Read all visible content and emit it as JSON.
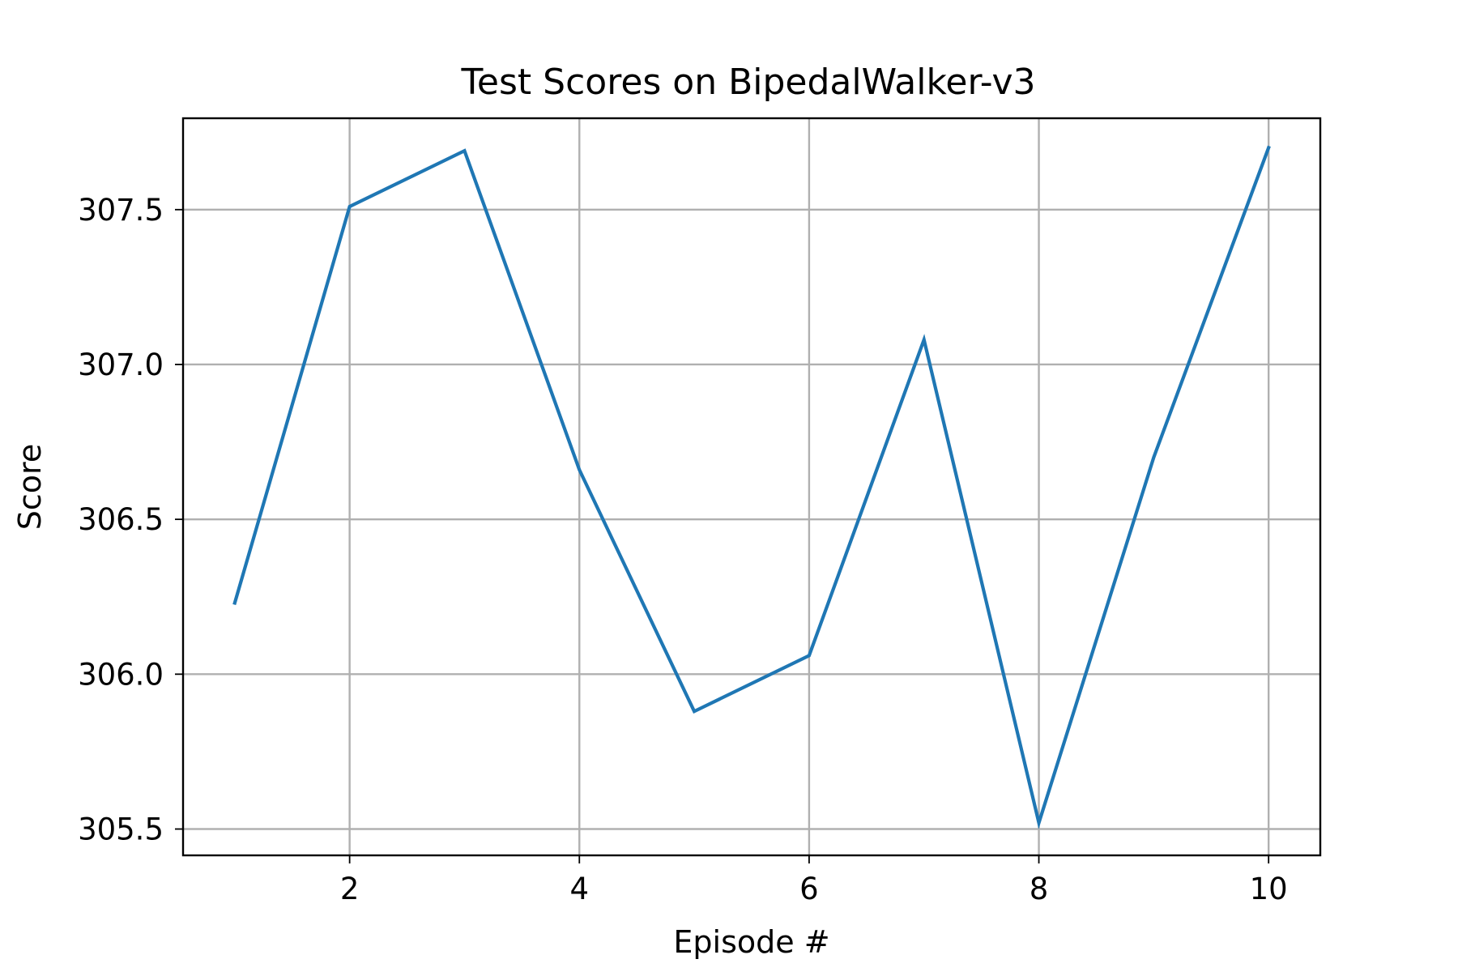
{
  "chart_data": {
    "type": "line",
    "title": "Test Scores on BipedalWalker-v3",
    "xlabel": "Episode #",
    "ylabel": "Score",
    "xlim": [
      0.55,
      10.45
    ],
    "ylim": [
      305.415,
      307.795
    ],
    "xticks": [
      2,
      4,
      6,
      8,
      10
    ],
    "yticks": [
      305.5,
      306.0,
      306.5,
      307.0,
      307.5
    ],
    "xtick_labels": [
      "2",
      "4",
      "6",
      "8",
      "10"
    ],
    "ytick_labels": [
      "305.5",
      "306.0",
      "306.5",
      "307.0",
      "307.5"
    ],
    "grid": true,
    "legend": "none",
    "series": [
      {
        "color": "#1f77b4",
        "x": [
          1,
          2,
          3,
          4,
          5,
          6,
          7,
          8,
          9,
          10
        ],
        "y": [
          306.23,
          307.51,
          307.69,
          306.66,
          305.88,
          306.06,
          307.08,
          305.52,
          306.7,
          307.7
        ]
      }
    ]
  }
}
